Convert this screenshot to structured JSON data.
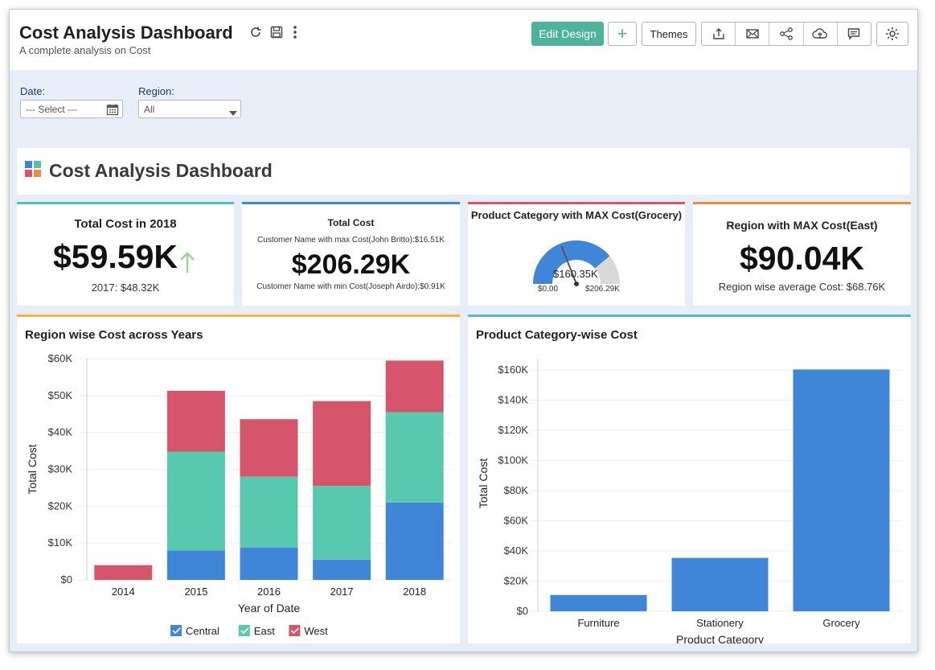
{
  "header": {
    "title": "Cost Analysis Dashboard",
    "subtitle": "A complete analysis on Cost",
    "edit_design_label": "Edit Design",
    "add_label": "+",
    "themes_label": "Themes"
  },
  "filters": {
    "date_label": "Date:",
    "date_placeholder": "--- Select ---",
    "region_label": "Region:",
    "region_value": "All"
  },
  "dashboard_heading": "Cost Analysis Dashboard",
  "kpis": {
    "total_cost_2018": {
      "title": "Total Cost in 2018",
      "value": "$59.59K",
      "sub": "2017: $48.32K",
      "accent": "#4fc3b1",
      "trend": "up"
    },
    "total_cost": {
      "title": "Total Cost",
      "top_note": "Customer Name with max Cost(John Britto):$16.51K",
      "value": "$206.29K",
      "bottom_note": "Customer Name with min Cost(Joseph Airdo):$0.91K",
      "accent": "#3f86d8"
    },
    "max_category": {
      "title": "Product Category with MAX Cost(Grocery)",
      "value": "$160.35K",
      "min_label": "$0.00",
      "max_label": "$206.29K",
      "accent": "#d7556b",
      "gauge_value": 160.35,
      "gauge_max": 206.29
    },
    "max_region": {
      "title": "Region with MAX Cost(East)",
      "value": "$90.04K",
      "sub": "Region wise average Cost: $68.76K",
      "accent": "#ef8c3c"
    }
  },
  "chart_data": [
    {
      "type": "bar",
      "stacked": true,
      "title": "Region wise Cost across Years",
      "xlabel": "Year of Date",
      "ylabel": "Total Cost",
      "categories": [
        "2014",
        "2015",
        "2016",
        "2017",
        "2018"
      ],
      "y_ticks": [
        "$0",
        "$10K",
        "$20K",
        "$30K",
        "$40K",
        "$50K",
        "$60K"
      ],
      "ylim": [
        0,
        60000
      ],
      "series": [
        {
          "name": "Central",
          "color": "#3f86d8",
          "values": [
            0,
            8000,
            8800,
            5500,
            21000
          ]
        },
        {
          "name": "East",
          "color": "#58c9ae",
          "values": [
            0,
            26800,
            19200,
            20000,
            24500
          ]
        },
        {
          "name": "West",
          "color": "#d7556b",
          "values": [
            4000,
            16500,
            15600,
            23000,
            14000
          ]
        }
      ],
      "legend": "bottom",
      "accent": "#f2b43a"
    },
    {
      "type": "bar",
      "title": "Product Category-wise Cost",
      "xlabel": "Product Category",
      "ylabel": "Total Cost",
      "categories": [
        "Furniture",
        "Stationery",
        "Grocery"
      ],
      "values": [
        10800,
        35400,
        160350
      ],
      "y_ticks": [
        "$0",
        "$20K",
        "$40K",
        "$60K",
        "$80K",
        "$100K",
        "$120K",
        "$140K",
        "$160K"
      ],
      "ylim": [
        0,
        160000
      ],
      "color": "#3f86d8",
      "accent": "#4fc3b1"
    }
  ]
}
